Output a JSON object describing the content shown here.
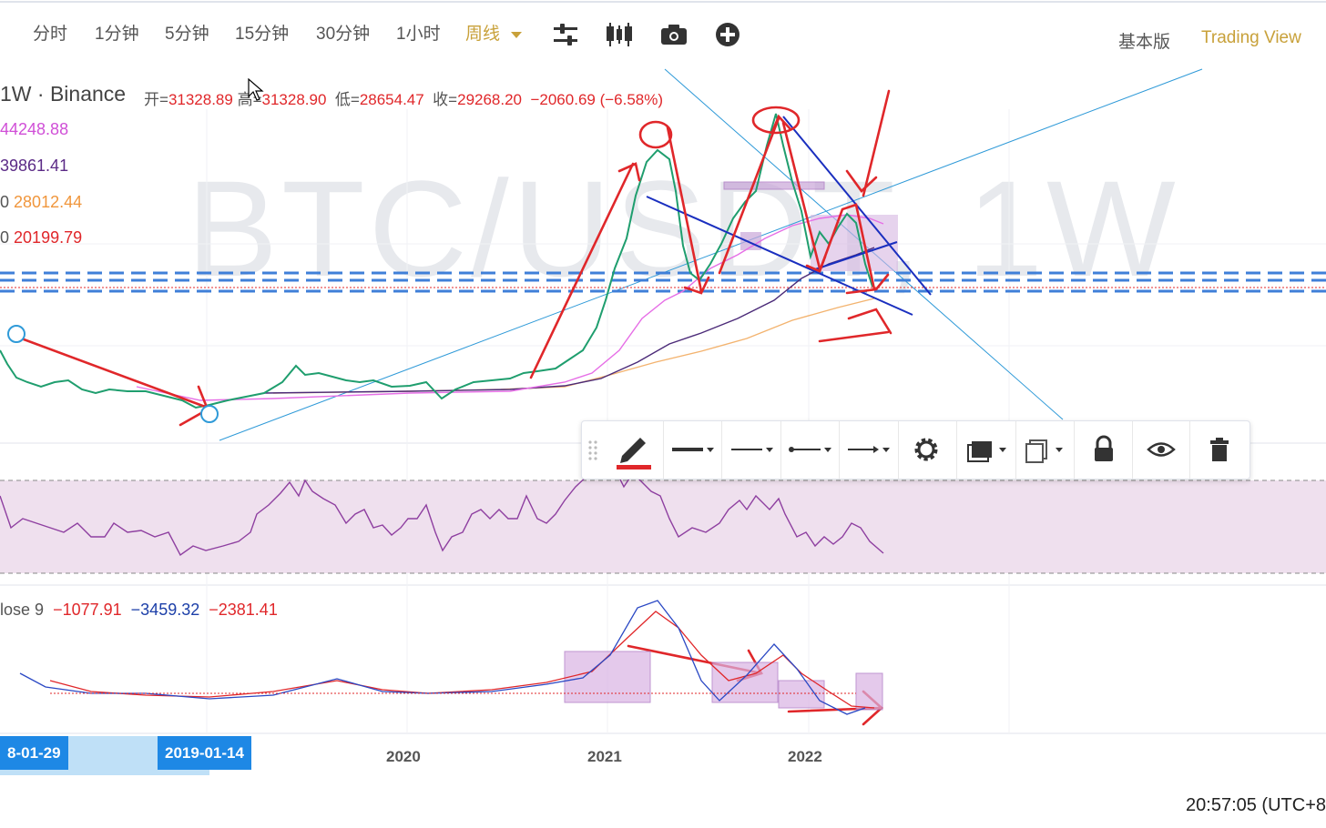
{
  "toolbar": {
    "timeframes": [
      "分时",
      "1分钟",
      "5分钟",
      "15分钟",
      "30分钟",
      "1小时"
    ],
    "active_timeframe": "周线",
    "icons": [
      "sliders-icon",
      "candles-icon",
      "camera-icon",
      "plus-circle-icon"
    ],
    "modes": {
      "basic": "基本版",
      "tradingview": "Trading View"
    }
  },
  "legend": {
    "interval": "1W",
    "separator": "·",
    "exchange": "Binance",
    "open_label": "开=",
    "open": "31328.89",
    "high_label": "高=",
    "high": "31328.90",
    "low_label": "低=",
    "low": "28654.47",
    "close_label": "收=",
    "close": "29268.20",
    "change": "−2060.69 (−6.58%)"
  },
  "ma_lines": [
    {
      "prefix": "",
      "value": "44248.88",
      "color": "#d04fd7"
    },
    {
      "prefix": "",
      "value": "39861.41",
      "color": "#5b2a86"
    },
    {
      "prefix": "0",
      "value": "28012.44",
      "color": "#f0963c"
    },
    {
      "prefix": "0",
      "value": "20199.79",
      "color": "#e0272a"
    }
  ],
  "watermark": "BTC/USDT, 1W",
  "drawing_toolbar": {
    "tools": [
      "drag-handle-icon",
      "pencil-icon",
      "line-thickness-icon",
      "line-style-icon",
      "line-end-icon",
      "arrow-end-icon",
      "settings-icon",
      "layers-icon",
      "clone-icon",
      "lock-icon",
      "eye-icon",
      "trash-icon"
    ],
    "pencil_color": "#e0272a"
  },
  "macd_legend": {
    "label": "lose 9",
    "v1": "−1077.91",
    "v2": "−3459.32",
    "v3": "−2381.41",
    "c1": "#e0272a",
    "c2": "#1c3fa8",
    "c3": "#e0272a"
  },
  "x_axis": {
    "badge_left": "8-01-29",
    "badge_right": "2019-01-14",
    "labels": [
      "2020",
      "2021",
      "2022"
    ]
  },
  "clock": "20:57:05 (UTC+8"
}
